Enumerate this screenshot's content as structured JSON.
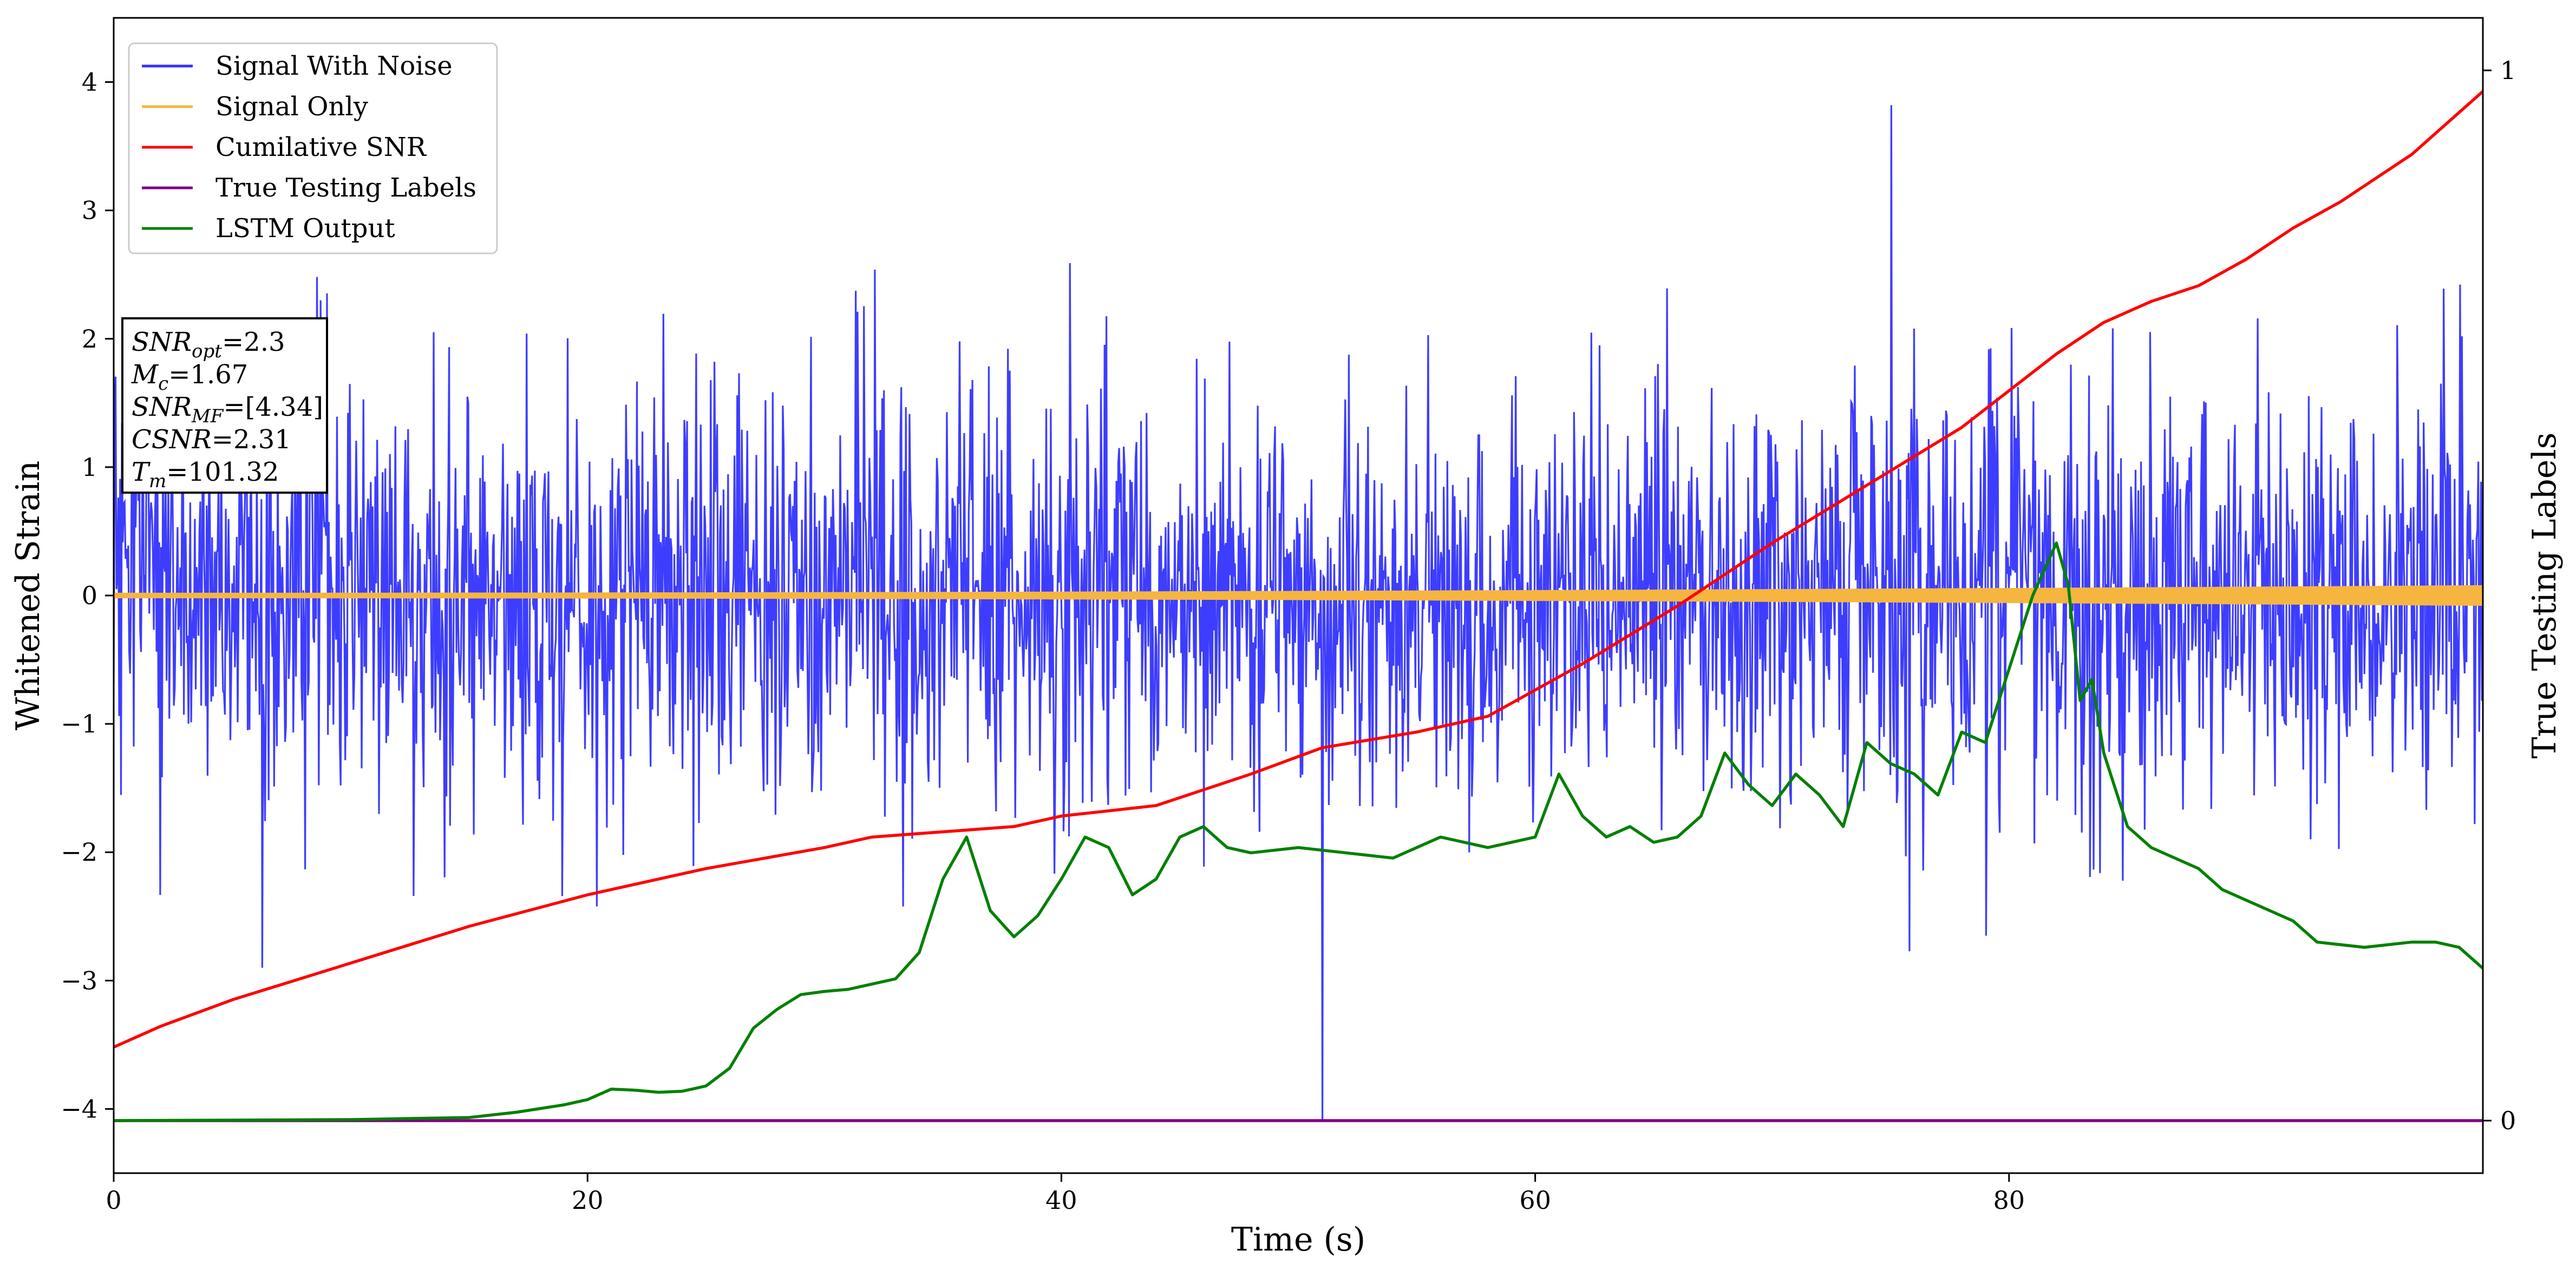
{
  "chart_data": {
    "type": "line",
    "xlabel": "Time (s)",
    "ylabel": "Whitened Strain",
    "ylabel_right": "True Testing Labels",
    "xlim": [
      0,
      100
    ],
    "ylim": [
      -4.5,
      4.5
    ],
    "ylim_right": [
      -0.05,
      1.05
    ],
    "x_ticks": [
      0,
      20,
      40,
      60,
      80
    ],
    "x_tick_labels": [
      "0",
      "20",
      "40",
      "60",
      "80"
    ],
    "y_ticks": [
      -4,
      -3,
      -2,
      -1,
      0,
      1,
      2,
      3,
      4
    ],
    "y_tick_labels": [
      "−4",
      "−3",
      "−2",
      "−1",
      "0",
      "1",
      "2",
      "3",
      "4"
    ],
    "y_right_ticks": [
      0,
      1
    ],
    "y_right_tick_labels": [
      "0",
      "1"
    ],
    "grid": false,
    "legend_position": "top-left",
    "series": [
      {
        "name": "Signal With Noise",
        "axis": "left",
        "color": "#3333ff",
        "kind": "noise",
        "sigma": 0.8,
        "max": 3.82,
        "min": -4.1,
        "sample_count": 2600
      },
      {
        "name": "Signal Only",
        "axis": "left",
        "color": "#f5b53f",
        "kind": "chirp",
        "amplitude_start": 0.02,
        "amplitude_end": 0.08
      },
      {
        "name": "Cumilative SNR",
        "axis": "right",
        "color": "#ff0000",
        "x": [
          0,
          2,
          5,
          10,
          15,
          20,
          25,
          30,
          32,
          35,
          38,
          40,
          44,
          48,
          51,
          55,
          58,
          62,
          66,
          70,
          74,
          78,
          82,
          84,
          86,
          88,
          90,
          92,
          94,
          97,
          100
        ],
        "y": [
          0.07,
          0.09,
          0.115,
          0.15,
          0.185,
          0.215,
          0.24,
          0.26,
          0.27,
          0.275,
          0.28,
          0.29,
          0.3,
          0.33,
          0.355,
          0.37,
          0.385,
          0.435,
          0.49,
          0.55,
          0.605,
          0.66,
          0.73,
          0.76,
          0.78,
          0.795,
          0.82,
          0.85,
          0.875,
          0.92,
          0.98
        ]
      },
      {
        "name": "True Testing Labels",
        "axis": "right",
        "color": "#800080",
        "x": [
          0,
          100
        ],
        "y": [
          0,
          0
        ]
      },
      {
        "name": "LSTM Output",
        "axis": "right",
        "color": "#008000",
        "x": [
          0,
          10,
          15,
          17,
          19,
          20,
          21,
          22,
          23,
          24,
          25,
          26,
          27,
          28,
          29,
          30,
          31,
          32,
          33,
          34,
          35,
          36,
          37,
          38,
          39,
          40,
          41,
          42,
          43,
          44,
          45,
          46,
          47,
          48,
          50,
          52,
          54,
          56,
          58,
          60,
          61,
          62,
          63,
          64,
          65,
          66,
          67,
          68,
          69,
          70,
          71,
          72,
          73,
          74,
          75,
          76,
          77,
          78,
          79,
          80,
          81,
          82,
          82.5,
          83,
          83.5,
          84,
          85,
          86,
          87,
          88,
          89,
          90,
          91,
          92,
          93,
          95,
          97,
          98,
          99,
          100
        ],
        "y": [
          0.0,
          0.001,
          0.003,
          0.008,
          0.015,
          0.02,
          0.03,
          0.029,
          0.027,
          0.028,
          0.033,
          0.05,
          0.088,
          0.106,
          0.12,
          0.123,
          0.125,
          0.13,
          0.135,
          0.16,
          0.23,
          0.27,
          0.2,
          0.175,
          0.195,
          0.23,
          0.27,
          0.26,
          0.215,
          0.23,
          0.27,
          0.28,
          0.26,
          0.255,
          0.26,
          0.255,
          0.25,
          0.27,
          0.26,
          0.27,
          0.33,
          0.29,
          0.27,
          0.28,
          0.265,
          0.27,
          0.29,
          0.35,
          0.32,
          0.3,
          0.33,
          0.31,
          0.28,
          0.36,
          0.34,
          0.33,
          0.31,
          0.37,
          0.36,
          0.43,
          0.5,
          0.55,
          0.51,
          0.4,
          0.42,
          0.35,
          0.28,
          0.26,
          0.25,
          0.24,
          0.22,
          0.21,
          0.2,
          0.19,
          0.17,
          0.165,
          0.17,
          0.17,
          0.165,
          0.145
        ]
      }
    ],
    "annotation": {
      "lines": [
        {
          "name": "SNR",
          "sub": "opt",
          "value": "=2.3"
        },
        {
          "name": "M",
          "sub": "c",
          "value": "=1.67"
        },
        {
          "name": "SNR",
          "sub": "MF",
          "value": "=[4.34]"
        },
        {
          "name": "CSNR",
          "sub": "",
          "value": "=2.31"
        },
        {
          "name": "T",
          "sub": "m",
          "value": "=101.32"
        }
      ]
    }
  }
}
